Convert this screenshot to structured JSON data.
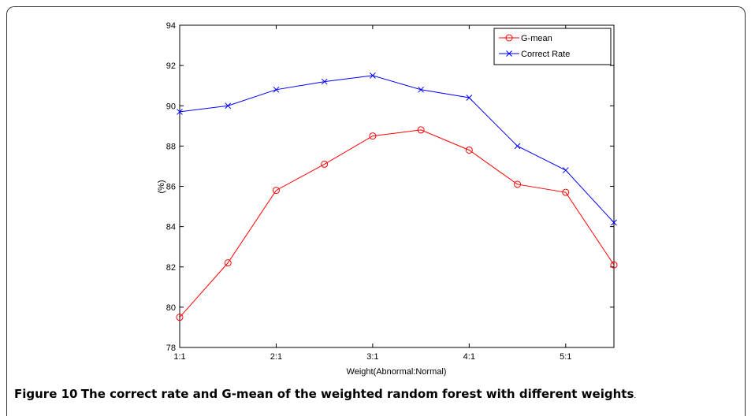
{
  "chart_data": {
    "type": "line",
    "x": [
      "1:1",
      "1.5:1",
      "2:1",
      "2.5:1",
      "3:1",
      "3.5:1",
      "4:1",
      "4.5:1",
      "5:1",
      "5.5:1"
    ],
    "tick_labels": [
      "1:1",
      "2:1",
      "3:1",
      "4:1",
      "5:1"
    ],
    "series": [
      {
        "name": "G-mean",
        "color": "#ff0000",
        "marker": "circle",
        "values": [
          79.5,
          82.2,
          85.8,
          87.1,
          88.5,
          88.8,
          87.8,
          86.1,
          85.7,
          82.1
        ]
      },
      {
        "name": "Correct Rate",
        "color": "#0000ff",
        "marker": "x",
        "values": [
          89.7,
          90.0,
          90.8,
          91.2,
          91.5,
          90.8,
          90.4,
          88.0,
          86.8,
          84.2
        ]
      }
    ],
    "xlabel": "Weight(Abnormal:Normal)",
    "ylabel": "(%)",
    "ylim": [
      78,
      94
    ],
    "yticks": [
      78,
      80,
      82,
      84,
      86,
      88,
      90,
      92,
      94
    ],
    "grid": false,
    "legend": "top-right"
  },
  "figure": {
    "label": "Figure 10",
    "title": "The correct rate and G-mean of the weighted random forest with different weights",
    "end": "."
  }
}
